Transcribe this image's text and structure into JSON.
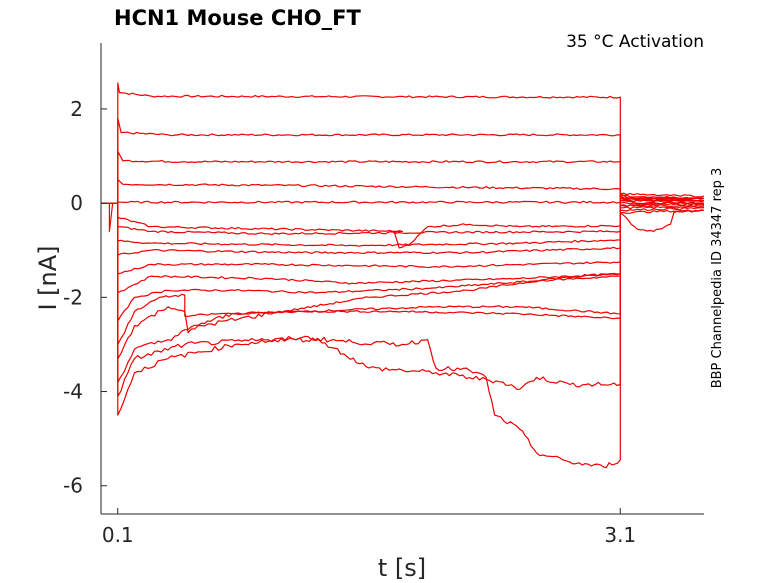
{
  "chart_data": {
    "type": "line",
    "title": "HCN1  Mouse  CHO_FT",
    "annotation": "35 °C  Activation",
    "side_label": "BBP Channelpedia ID 34347 rep 3",
    "xlabel": "t [s]",
    "ylabel": "I [nA]",
    "xlim": [
      0.0,
      3.6
    ],
    "ylim": [
      -6.6,
      3.4
    ],
    "x_ticks": [
      0.1,
      3.1
    ],
    "x_tick_labels": [
      "0.1",
      "3.1"
    ],
    "y_ticks": [
      2,
      0,
      -2,
      -4,
      -6
    ],
    "y_tick_labels": [
      "2",
      "0",
      "-2",
      "-4",
      "-6"
    ],
    "grid": false,
    "legend": "none",
    "line_color": "#ee0000",
    "series": [
      {
        "values": [
          [
            0.0,
            0.0
          ],
          [
            0.1,
            0.0
          ],
          [
            0.1,
            2.55
          ],
          [
            0.11,
            2.35
          ],
          [
            0.3,
            2.27
          ],
          [
            3.1,
            2.25
          ],
          [
            3.1,
            0.2
          ],
          [
            3.15,
            0.1
          ],
          [
            3.6,
            0.05
          ]
        ]
      },
      {
        "values": [
          [
            0.0,
            0.0
          ],
          [
            0.1,
            0.0
          ],
          [
            0.1,
            1.8
          ],
          [
            0.12,
            1.5
          ],
          [
            0.4,
            1.45
          ],
          [
            3.1,
            1.45
          ],
          [
            3.1,
            0.15
          ],
          [
            3.2,
            0.0
          ],
          [
            3.6,
            0.0
          ]
        ]
      },
      {
        "values": [
          [
            0.0,
            0.0
          ],
          [
            0.1,
            0.0
          ],
          [
            0.1,
            1.1
          ],
          [
            0.13,
            0.9
          ],
          [
            0.5,
            0.88
          ],
          [
            3.1,
            0.88
          ],
          [
            3.1,
            0.1
          ],
          [
            3.3,
            0.05
          ],
          [
            3.6,
            0.05
          ]
        ]
      },
      {
        "values": [
          [
            0.0,
            0.0
          ],
          [
            0.1,
            0.0
          ],
          [
            0.1,
            0.5
          ],
          [
            0.13,
            0.4
          ],
          [
            1.0,
            0.38
          ],
          [
            3.1,
            0.3
          ],
          [
            3.1,
            0.05
          ],
          [
            3.6,
            0.05
          ]
        ]
      },
      {
        "values": [
          [
            0.0,
            0.0
          ],
          [
            0.05,
            0.0
          ],
          [
            0.05,
            -0.6
          ],
          [
            0.07,
            0.0
          ],
          [
            0.1,
            0.0
          ],
          [
            0.1,
            0.02
          ],
          [
            2.0,
            0.02
          ],
          [
            3.1,
            0.02
          ],
          [
            3.1,
            -0.05
          ],
          [
            3.6,
            -0.02
          ]
        ]
      },
      {
        "values": [
          [
            0.0,
            0.0
          ],
          [
            0.1,
            0.0
          ],
          [
            0.1,
            -0.3
          ],
          [
            0.3,
            -0.5
          ],
          [
            1.8,
            -0.6
          ],
          [
            1.75,
            -0.6
          ],
          [
            1.78,
            -0.95
          ],
          [
            1.85,
            -0.85
          ],
          [
            1.95,
            -0.5
          ],
          [
            2.2,
            -0.45
          ],
          [
            2.5,
            -0.5
          ],
          [
            3.1,
            -0.48
          ],
          [
            3.1,
            -0.2
          ],
          [
            3.2,
            -0.55
          ],
          [
            3.3,
            -0.6
          ],
          [
            3.4,
            -0.45
          ],
          [
            3.42,
            -0.2
          ],
          [
            3.6,
            -0.15
          ]
        ]
      },
      {
        "values": [
          [
            0.0,
            0.0
          ],
          [
            0.1,
            0.0
          ],
          [
            0.1,
            -0.5
          ],
          [
            0.3,
            -0.6
          ],
          [
            1.0,
            -0.65
          ],
          [
            2.0,
            -0.62
          ],
          [
            3.1,
            -0.6
          ],
          [
            3.1,
            -0.2
          ],
          [
            3.6,
            -0.15
          ]
        ]
      },
      {
        "values": [
          [
            0.0,
            0.0
          ],
          [
            0.1,
            0.0
          ],
          [
            0.1,
            -0.8
          ],
          [
            0.3,
            -0.85
          ],
          [
            1.5,
            -0.9
          ],
          [
            2.5,
            -0.85
          ],
          [
            3.1,
            -0.78
          ],
          [
            3.1,
            -0.15
          ],
          [
            3.6,
            -0.1
          ]
        ]
      },
      {
        "values": [
          [
            0.0,
            0.0
          ],
          [
            0.1,
            0.0
          ],
          [
            0.1,
            -1.1
          ],
          [
            0.3,
            -1.0
          ],
          [
            1.2,
            -1.05
          ],
          [
            2.2,
            -1.05
          ],
          [
            3.1,
            -0.95
          ],
          [
            3.1,
            -0.1
          ],
          [
            3.6,
            -0.08
          ]
        ]
      },
      {
        "values": [
          [
            0.0,
            0.0
          ],
          [
            0.1,
            0.0
          ],
          [
            0.1,
            -1.5
          ],
          [
            0.3,
            -1.3
          ],
          [
            1.0,
            -1.3
          ],
          [
            2.0,
            -1.35
          ],
          [
            3.1,
            -1.25
          ],
          [
            3.1,
            -0.05
          ],
          [
            3.6,
            -0.05
          ]
        ]
      },
      {
        "values": [
          [
            0.0,
            0.0
          ],
          [
            0.1,
            0.0
          ],
          [
            0.1,
            -1.9
          ],
          [
            0.3,
            -1.55
          ],
          [
            1.0,
            -1.6
          ],
          [
            1.5,
            -1.7
          ],
          [
            2.5,
            -1.6
          ],
          [
            3.1,
            -1.5
          ],
          [
            3.1,
            0.0
          ],
          [
            3.6,
            0.0
          ]
        ]
      },
      {
        "values": [
          [
            0.0,
            0.0
          ],
          [
            0.1,
            0.0
          ],
          [
            0.1,
            -2.5
          ],
          [
            0.2,
            -2.0
          ],
          [
            0.4,
            -1.85
          ],
          [
            0.8,
            -1.85
          ],
          [
            1.3,
            -1.9
          ],
          [
            2.0,
            -1.8
          ],
          [
            2.6,
            -1.65
          ],
          [
            3.1,
            -1.55
          ],
          [
            3.1,
            0.05
          ],
          [
            3.6,
            0.05
          ]
        ]
      },
      {
        "values": [
          [
            0.0,
            0.0
          ],
          [
            0.1,
            0.0
          ],
          [
            0.1,
            -3.0
          ],
          [
            0.2,
            -2.3
          ],
          [
            0.35,
            -2.0
          ],
          [
            0.5,
            -1.95
          ],
          [
            0.5,
            -2.4
          ],
          [
            0.7,
            -2.35
          ],
          [
            1.2,
            -2.3
          ],
          [
            2.0,
            -2.2
          ],
          [
            2.5,
            -2.2
          ],
          [
            3.1,
            -2.35
          ],
          [
            3.1,
            0.1
          ],
          [
            3.6,
            0.1
          ]
        ]
      },
      {
        "values": [
          [
            0.0,
            0.0
          ],
          [
            0.1,
            0.0
          ],
          [
            0.1,
            -3.3
          ],
          [
            0.2,
            -2.6
          ],
          [
            0.4,
            -2.2
          ],
          [
            0.5,
            -2.3
          ],
          [
            0.52,
            -2.75
          ],
          [
            0.6,
            -2.6
          ],
          [
            1.0,
            -2.35
          ],
          [
            1.6,
            -2.0
          ],
          [
            2.2,
            -1.85
          ],
          [
            2.7,
            -1.6
          ],
          [
            3.1,
            -1.5
          ],
          [
            3.1,
            0.1
          ],
          [
            3.6,
            0.1
          ]
        ]
      },
      {
        "values": [
          [
            0.0,
            0.0
          ],
          [
            0.1,
            0.0
          ],
          [
            0.1,
            -3.8
          ],
          [
            0.2,
            -3.1
          ],
          [
            0.4,
            -2.9
          ],
          [
            0.6,
            -2.55
          ],
          [
            0.8,
            -2.35
          ],
          [
            1.2,
            -2.3
          ],
          [
            1.8,
            -2.3
          ],
          [
            2.5,
            -2.35
          ],
          [
            3.1,
            -2.45
          ],
          [
            3.1,
            0.1
          ],
          [
            3.6,
            0.1
          ]
        ]
      },
      {
        "values": [
          [
            0.0,
            0.0
          ],
          [
            0.1,
            0.0
          ],
          [
            0.1,
            -4.1
          ],
          [
            0.2,
            -3.3
          ],
          [
            0.5,
            -3.0
          ],
          [
            1.0,
            -2.9
          ],
          [
            1.3,
            -2.9
          ],
          [
            1.45,
            -3.2
          ],
          [
            1.6,
            -3.5
          ],
          [
            2.0,
            -3.6
          ],
          [
            2.4,
            -3.8
          ],
          [
            2.5,
            -3.95
          ],
          [
            2.6,
            -3.7
          ],
          [
            2.8,
            -3.85
          ],
          [
            3.1,
            -3.85
          ],
          [
            3.1,
            0.15
          ],
          [
            3.6,
            0.1
          ]
        ]
      },
      {
        "values": [
          [
            0.0,
            0.0
          ],
          [
            0.1,
            0.0
          ],
          [
            0.1,
            -4.5
          ],
          [
            0.2,
            -3.6
          ],
          [
            0.4,
            -3.3
          ],
          [
            0.8,
            -3.0
          ],
          [
            1.2,
            -2.85
          ],
          [
            1.5,
            -2.95
          ],
          [
            1.8,
            -3.0
          ],
          [
            1.95,
            -2.9
          ],
          [
            2.0,
            -3.5
          ],
          [
            2.2,
            -3.55
          ],
          [
            2.3,
            -3.7
          ],
          [
            2.35,
            -4.5
          ],
          [
            2.5,
            -4.8
          ],
          [
            2.6,
            -5.3
          ],
          [
            2.8,
            -5.5
          ],
          [
            3.0,
            -5.6
          ],
          [
            3.1,
            -5.45
          ],
          [
            3.1,
            0.2
          ],
          [
            3.6,
            0.15
          ]
        ]
      }
    ]
  }
}
